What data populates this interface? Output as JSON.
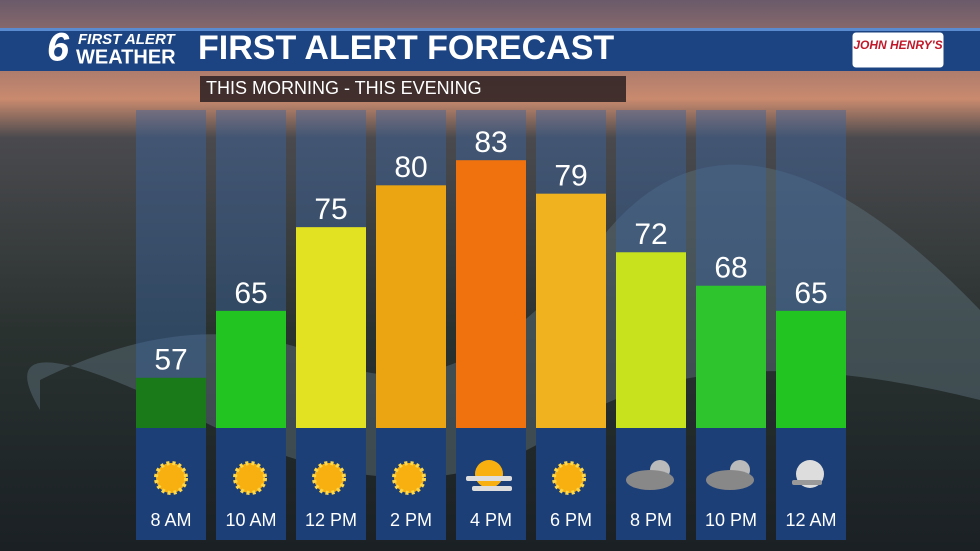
{
  "header": {
    "logo_number": "6",
    "logo_line1": "FIRST ALERT",
    "logo_line2": "WEATHER",
    "title": "FIRST ALERT FORECAST",
    "sponsor": "JOHN HENRY'S"
  },
  "chart_data": {
    "type": "bar",
    "subtitle": "THIS MORNING - THIS EVENING",
    "categories": [
      "8 AM",
      "10 AM",
      "12 PM",
      "2 PM",
      "4 PM",
      "6 PM",
      "8 PM",
      "10 PM",
      "12 AM"
    ],
    "values": [
      57,
      65,
      75,
      80,
      83,
      79,
      72,
      68,
      65
    ],
    "colors": [
      "#1a7a1a",
      "#22c422",
      "#e2e222",
      "#eba512",
      "#f0720e",
      "#f0b21e",
      "#c8e21e",
      "#2ec42e",
      "#22c422"
    ],
    "ylim": [
      51,
      89
    ]
  }
}
